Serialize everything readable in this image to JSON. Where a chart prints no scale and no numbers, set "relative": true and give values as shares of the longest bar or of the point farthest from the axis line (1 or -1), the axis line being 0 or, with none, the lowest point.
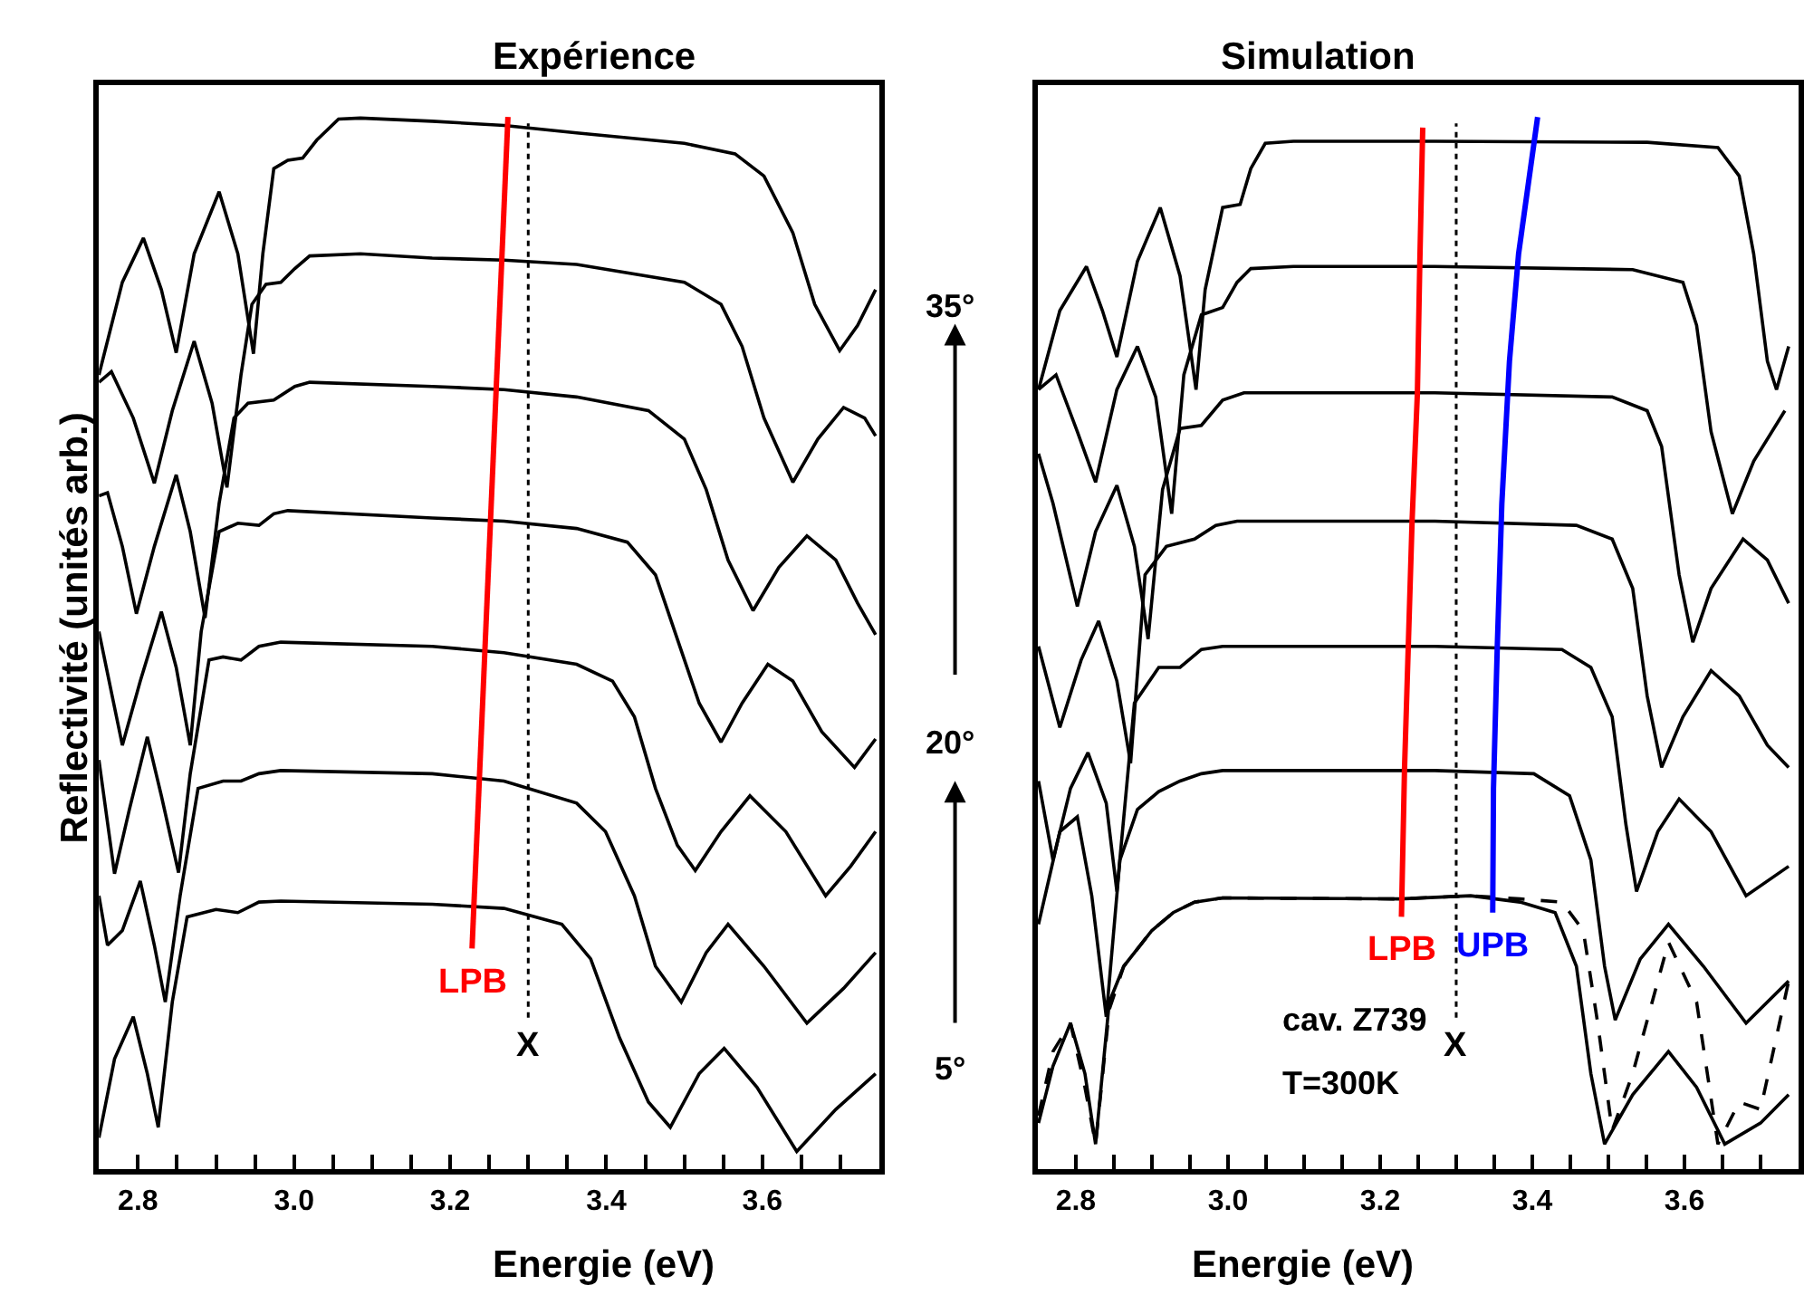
{
  "chart_data": [
    {
      "type": "line",
      "title": "Expérience",
      "xlabel": "Energie (eV)",
      "ylabel": "Reflectivité (unités arb.)",
      "relative": true,
      "xlim": [
        2.75,
        3.75
      ],
      "xticks": [
        {
          "value": 2.8,
          "label": "2.8"
        },
        {
          "value": 2.85,
          "label": null
        },
        {
          "value": 2.9,
          "label": null
        },
        {
          "value": 2.95,
          "label": null
        },
        {
          "value": 3.0,
          "label": "3.0"
        },
        {
          "value": 3.05,
          "label": null
        },
        {
          "value": 3.1,
          "label": null
        },
        {
          "value": 3.15,
          "label": null
        },
        {
          "value": 3.2,
          "label": "3.2"
        },
        {
          "value": 3.25,
          "label": null
        },
        {
          "value": 3.3,
          "label": null
        },
        {
          "value": 3.35,
          "label": null
        },
        {
          "value": 3.4,
          "label": "3.4"
        },
        {
          "value": 3.45,
          "label": null
        },
        {
          "value": 3.5,
          "label": null
        },
        {
          "value": 3.55,
          "label": null
        },
        {
          "value": 3.6,
          "label": "3.6"
        },
        {
          "value": 3.65,
          "label": null
        },
        {
          "value": 3.7,
          "label": null
        }
      ],
      "ref_lines": [
        {
          "axis": "x",
          "value": 3.3,
          "label": "X",
          "color": "#000000",
          "line_style": "dotted"
        }
      ],
      "series": [
        {
          "color": "#000000",
          "x": [
            2.75,
            2.78,
            2.807,
            2.83,
            2.849,
            2.872,
            2.904,
            2.928,
            2.948,
            2.96,
            2.974,
            2.992,
            3.011,
            3.029,
            3.057,
            3.085,
            3.177,
            3.269,
            3.362,
            3.5,
            3.565,
            3.602,
            3.639,
            3.667,
            3.699,
            3.722,
            3.745
          ],
          "values": [
            0.755,
            0.843,
            0.885,
            0.836,
            0.776,
            0.87,
            0.929,
            0.87,
            0.775,
            0.87,
            0.951,
            0.959,
            0.961,
            0.978,
            0.998,
            0.999,
            0.996,
            0.992,
            0.985,
            0.975,
            0.965,
            0.944,
            0.89,
            0.822,
            0.778,
            0.802,
            0.836
          ]
        },
        {
          "color": "#000000",
          "x": [
            2.75,
            2.766,
            2.794,
            2.821,
            2.844,
            2.872,
            2.895,
            2.914,
            2.932,
            2.946,
            2.964,
            2.983,
            3.001,
            3.02,
            3.085,
            3.177,
            3.269,
            3.362,
            3.5,
            3.547,
            3.574,
            3.602,
            3.639,
            3.671,
            3.704,
            3.731,
            3.745
          ],
          "values": [
            0.748,
            0.758,
            0.714,
            0.652,
            0.721,
            0.787,
            0.728,
            0.648,
            0.755,
            0.822,
            0.841,
            0.843,
            0.856,
            0.868,
            0.87,
            0.866,
            0.864,
            0.86,
            0.843,
            0.822,
            0.782,
            0.714,
            0.653,
            0.694,
            0.724,
            0.714,
            0.697
          ]
        },
        {
          "color": "#000000",
          "x": [
            2.75,
            2.761,
            2.78,
            2.798,
            2.821,
            2.849,
            2.867,
            2.886,
            2.904,
            2.923,
            2.941,
            2.974,
            3.001,
            3.02,
            3.177,
            3.269,
            3.362,
            3.454,
            3.5,
            3.528,
            3.556,
            3.588,
            3.621,
            3.657,
            3.694,
            3.722,
            3.745
          ],
          "values": [
            0.64,
            0.643,
            0.592,
            0.528,
            0.592,
            0.66,
            0.606,
            0.524,
            0.633,
            0.714,
            0.728,
            0.731,
            0.744,
            0.748,
            0.744,
            0.741,
            0.734,
            0.721,
            0.694,
            0.646,
            0.579,
            0.531,
            0.572,
            0.602,
            0.579,
            0.538,
            0.508
          ]
        },
        {
          "color": "#000000",
          "x": [
            2.75,
            2.78,
            2.803,
            2.83,
            2.849,
            2.867,
            2.881,
            2.904,
            2.928,
            2.955,
            2.974,
            2.992,
            3.177,
            3.269,
            3.362,
            3.427,
            3.463,
            3.491,
            3.519,
            3.547,
            3.574,
            3.607,
            3.639,
            3.676,
            3.718,
            3.745
          ],
          "values": [
            0.511,
            0.403,
            0.464,
            0.53,
            0.477,
            0.403,
            0.511,
            0.606,
            0.614,
            0.612,
            0.623,
            0.626,
            0.619,
            0.616,
            0.609,
            0.596,
            0.565,
            0.504,
            0.443,
            0.406,
            0.443,
            0.48,
            0.464,
            0.416,
            0.382,
            0.409
          ]
        },
        {
          "color": "#000000",
          "x": [
            2.75,
            2.77,
            2.789,
            2.812,
            2.83,
            2.852,
            2.867,
            2.891,
            2.909,
            2.932,
            2.955,
            2.983,
            3.177,
            3.269,
            3.362,
            3.408,
            3.436,
            3.463,
            3.491,
            3.514,
            3.547,
            3.584,
            3.63,
            3.681,
            3.713,
            3.745
          ],
          "values": [
            0.389,
            0.281,
            0.342,
            0.411,
            0.355,
            0.282,
            0.376,
            0.484,
            0.487,
            0.484,
            0.497,
            0.501,
            0.497,
            0.491,
            0.48,
            0.464,
            0.43,
            0.362,
            0.308,
            0.284,
            0.321,
            0.355,
            0.321,
            0.26,
            0.288,
            0.321
          ]
        },
        {
          "color": "#000000",
          "x": [
            2.75,
            2.761,
            2.78,
            2.803,
            2.821,
            2.835,
            2.854,
            2.877,
            2.909,
            2.932,
            2.955,
            2.983,
            3.177,
            3.269,
            3.362,
            3.399,
            3.436,
            3.463,
            3.496,
            3.528,
            3.556,
            3.602,
            3.657,
            3.704,
            3.745
          ],
          "values": [
            0.26,
            0.213,
            0.227,
            0.274,
            0.213,
            0.159,
            0.26,
            0.362,
            0.369,
            0.369,
            0.376,
            0.379,
            0.376,
            0.369,
            0.348,
            0.321,
            0.26,
            0.193,
            0.159,
            0.206,
            0.233,
            0.193,
            0.139,
            0.172,
            0.206
          ]
        },
        {
          "color": "#000000",
          "x": [
            2.75,
            2.77,
            2.794,
            2.812,
            2.826,
            2.844,
            2.863,
            2.9,
            2.928,
            2.955,
            2.983,
            3.177,
            3.269,
            3.343,
            3.38,
            3.417,
            3.454,
            3.482,
            3.519,
            3.551,
            3.593,
            3.644,
            3.694,
            3.745
          ],
          "values": [
            0.03,
            0.105,
            0.145,
            0.091,
            0.04,
            0.159,
            0.24,
            0.247,
            0.244,
            0.254,
            0.255,
            0.252,
            0.248,
            0.233,
            0.2,
            0.125,
            0.064,
            0.04,
            0.091,
            0.115,
            0.078,
            0.017,
            0.057,
            0.091
          ]
        },
        {
          "name": "LPB",
          "color": "#ff0000",
          "x": [
            3.274,
            3.228
          ],
          "values": [
            1.0,
            0.21
          ]
        }
      ]
    },
    {
      "type": "other",
      "annotations": [
        "35°",
        "20°",
        "5°"
      ]
    },
    {
      "type": "line",
      "title": "Simulation",
      "xlabel": "Energie (eV)",
      "relative": true,
      "xlim": [
        2.75,
        3.75
      ],
      "xticks": [
        {
          "value": 2.8,
          "label": "2.8"
        },
        {
          "value": 2.85,
          "label": null
        },
        {
          "value": 2.9,
          "label": null
        },
        {
          "value": 2.95,
          "label": null
        },
        {
          "value": 3.0,
          "label": "3.0"
        },
        {
          "value": 3.05,
          "label": null
        },
        {
          "value": 3.1,
          "label": null
        },
        {
          "value": 3.15,
          "label": null
        },
        {
          "value": 3.2,
          "label": "3.2"
        },
        {
          "value": 3.25,
          "label": null
        },
        {
          "value": 3.3,
          "label": null
        },
        {
          "value": 3.35,
          "label": null
        },
        {
          "value": 3.4,
          "label": "3.4"
        },
        {
          "value": 3.45,
          "label": null
        },
        {
          "value": 3.5,
          "label": null
        },
        {
          "value": 3.55,
          "label": null
        },
        {
          "value": 3.6,
          "label": "3.6"
        },
        {
          "value": 3.65,
          "label": null
        },
        {
          "value": 3.7,
          "label": null
        }
      ],
      "ref_lines": [
        {
          "axis": "x",
          "value": 3.3,
          "label": "X",
          "color": "#000000",
          "line_style": "dotted"
        }
      ],
      "annotations": [
        "cav. Z739",
        "T=300K"
      ],
      "series": [
        {
          "color": "#000000",
          "x": [
            2.751,
            2.779,
            2.814,
            2.835,
            2.854,
            2.881,
            2.911,
            2.937,
            2.958,
            2.97,
            2.993,
            3.016,
            3.03,
            3.049,
            3.086,
            3.272,
            3.551,
            3.644,
            3.672,
            3.691,
            3.709,
            3.721,
            3.737
          ],
          "values": [
            0.741,
            0.816,
            0.858,
            0.816,
            0.772,
            0.863,
            0.914,
            0.849,
            0.741,
            0.836,
            0.914,
            0.917,
            0.951,
            0.975,
            0.977,
            0.977,
            0.976,
            0.971,
            0.944,
            0.87,
            0.768,
            0.741,
            0.782
          ]
        },
        {
          "color": "#000000",
          "x": [
            2.751,
            2.774,
            2.802,
            2.826,
            2.854,
            2.881,
            2.905,
            2.926,
            2.942,
            2.965,
            2.993,
            3.012,
            3.03,
            3.086,
            3.272,
            3.532,
            3.598,
            3.616,
            3.635,
            3.663,
            3.691,
            3.732
          ],
          "values": [
            0.741,
            0.755,
            0.701,
            0.653,
            0.741,
            0.782,
            0.734,
            0.623,
            0.755,
            0.812,
            0.819,
            0.843,
            0.856,
            0.858,
            0.858,
            0.855,
            0.843,
            0.802,
            0.701,
            0.623,
            0.673,
            0.721
          ]
        },
        {
          "color": "#000000",
          "x": [
            2.751,
            2.77,
            2.802,
            2.826,
            2.854,
            2.877,
            2.895,
            2.914,
            2.937,
            2.965,
            2.993,
            3.021,
            3.272,
            3.505,
            3.551,
            3.57,
            3.593,
            3.611,
            3.635,
            3.677,
            3.709,
            3.737
          ],
          "values": [
            0.68,
            0.633,
            0.535,
            0.606,
            0.65,
            0.592,
            0.504,
            0.646,
            0.704,
            0.707,
            0.731,
            0.738,
            0.738,
            0.734,
            0.721,
            0.687,
            0.565,
            0.501,
            0.552,
            0.599,
            0.579,
            0.538
          ]
        },
        {
          "color": "#000000",
          "x": [
            2.751,
            2.779,
            2.807,
            2.83,
            2.854,
            2.872,
            2.891,
            2.919,
            2.956,
            2.984,
            3.012,
            3.272,
            3.458,
            3.505,
            3.532,
            3.551,
            3.57,
            3.598,
            3.635,
            3.672,
            3.709,
            3.737
          ],
          "values": [
            0.497,
            0.42,
            0.484,
            0.521,
            0.464,
            0.386,
            0.565,
            0.592,
            0.599,
            0.612,
            0.616,
            0.616,
            0.612,
            0.599,
            0.552,
            0.45,
            0.382,
            0.43,
            0.474,
            0.45,
            0.403,
            0.382
          ]
        },
        {
          "color": "#000000",
          "x": [
            2.751,
            2.77,
            2.793,
            2.816,
            2.84,
            2.854,
            2.877,
            2.909,
            2.937,
            2.965,
            2.993,
            3.272,
            3.439,
            3.477,
            3.505,
            3.523,
            3.537,
            3.565,
            3.593,
            3.635,
            3.681,
            3.737
          ],
          "values": [
            0.369,
            0.294,
            0.362,
            0.396,
            0.348,
            0.264,
            0.443,
            0.477,
            0.477,
            0.494,
            0.497,
            0.497,
            0.494,
            0.477,
            0.43,
            0.328,
            0.264,
            0.321,
            0.352,
            0.321,
            0.26,
            0.288
          ]
        },
        {
          "color": "#000000",
          "x": [
            2.751,
            2.779,
            2.802,
            2.821,
            2.84,
            2.858,
            2.881,
            2.909,
            2.937,
            2.965,
            2.993,
            3.272,
            3.402,
            3.449,
            3.477,
            3.495,
            3.509,
            3.542,
            3.579,
            3.625,
            3.681,
            3.737
          ],
          "values": [
            0.233,
            0.321,
            0.335,
            0.26,
            0.145,
            0.294,
            0.342,
            0.359,
            0.369,
            0.376,
            0.379,
            0.379,
            0.376,
            0.355,
            0.294,
            0.193,
            0.142,
            0.2,
            0.233,
            0.193,
            0.139,
            0.179
          ]
        },
        {
          "color": "#000000",
          "x": [
            2.751,
            2.77,
            2.793,
            2.812,
            2.826,
            2.844,
            2.863,
            2.9,
            2.928,
            2.956,
            2.993,
            3.226,
            3.319,
            3.384,
            3.43,
            3.458,
            3.477,
            3.495,
            3.532,
            3.579,
            3.616,
            3.653,
            3.7,
            3.737
          ],
          "values": [
            0.044,
            0.098,
            0.139,
            0.091,
            0.024,
            0.159,
            0.193,
            0.227,
            0.244,
            0.254,
            0.258,
            0.257,
            0.26,
            0.254,
            0.244,
            0.193,
            0.091,
            0.024,
            0.071,
            0.112,
            0.078,
            0.024,
            0.044,
            0.071
          ]
        },
        {
          "color": "#000000",
          "line_style": "dashed",
          "x": [
            2.751,
            2.77,
            2.793,
            2.812,
            2.826,
            2.844,
            2.863,
            2.9,
            2.928,
            2.956,
            2.993,
            3.226,
            3.319,
            3.384,
            3.439,
            3.467,
            3.486,
            3.505,
            3.532,
            3.579,
            3.616,
            3.644,
            3.672,
            3.7,
            3.737
          ],
          "values": [
            0.051,
            0.112,
            0.139,
            0.078,
            0.024,
            0.152,
            0.193,
            0.227,
            0.244,
            0.254,
            0.258,
            0.257,
            0.26,
            0.257,
            0.254,
            0.227,
            0.139,
            0.037,
            0.091,
            0.216,
            0.159,
            0.024,
            0.064,
            0.057,
            0.179
          ]
        },
        {
          "name": "LPB",
          "color": "#ff0000",
          "x": [
            3.256,
            3.252,
            3.249,
            3.242,
            3.237,
            3.232,
            3.228
          ],
          "values": [
            0.99,
            0.856,
            0.738,
            0.616,
            0.497,
            0.379,
            0.24
          ]
        },
        {
          "name": "UPB",
          "color": "#0000ff",
          "x": [
            3.407,
            3.382,
            3.37,
            3.36,
            3.354,
            3.349,
            3.348
          ],
          "values": [
            1.0,
            0.87,
            0.768,
            0.633,
            0.497,
            0.362,
            0.244
          ]
        }
      ]
    }
  ]
}
